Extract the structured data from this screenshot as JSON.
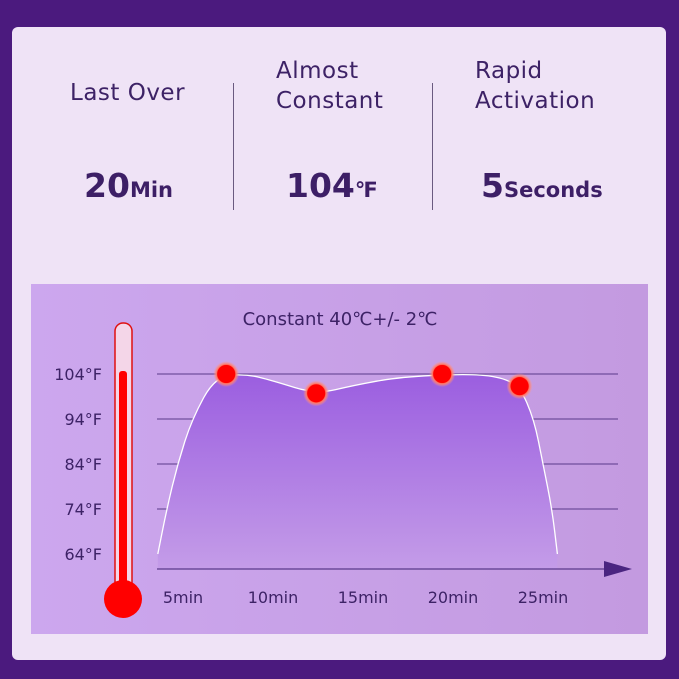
{
  "stats": [
    {
      "label": "Last Over",
      "value": "20",
      "unit": "Min"
    },
    {
      "label": "Almost Constant",
      "value": "104",
      "unit": "℉"
    },
    {
      "label": "Rapid Activation",
      "value": "5",
      "unit": "Seconds"
    }
  ],
  "chart_data": {
    "type": "area",
    "title": "Constant 40℃+/- 2℃",
    "xlabel": "",
    "ylabel": "",
    "x_ticks": [
      "5min",
      "10min",
      "15min",
      "20min",
      "25min"
    ],
    "x_tick_values": [
      5,
      10,
      15,
      20,
      25
    ],
    "y_ticks": [
      "64°F",
      "74°F",
      "84°F",
      "94°F",
      "104°F"
    ],
    "y_tick_values": [
      64,
      74,
      84,
      94,
      104
    ],
    "grid": true,
    "curve": {
      "x": [
        3.6,
        4.1,
        4.7,
        5.5,
        6.8,
        8.5,
        10,
        12.4,
        14.5,
        17,
        20.5,
        22.5,
        23.7,
        24.5,
        25.0,
        25.5,
        25.8
      ],
      "y": [
        64,
        74,
        84,
        94,
        103.5,
        104,
        102.5,
        99.5,
        101.5,
        103.3,
        104,
        103.5,
        101.3,
        94,
        84,
        74,
        64
      ]
    },
    "highlight_points": [
      {
        "x": 7.4,
        "y": 104
      },
      {
        "x": 12.4,
        "y": 99.7
      },
      {
        "x": 19.4,
        "y": 104
      },
      {
        "x": 23.7,
        "y": 101.3
      }
    ],
    "colors": {
      "fill": "#9b5ee0",
      "point": "#ff0000",
      "thermometer": "#ff0000",
      "axis": "#4a2580"
    }
  }
}
